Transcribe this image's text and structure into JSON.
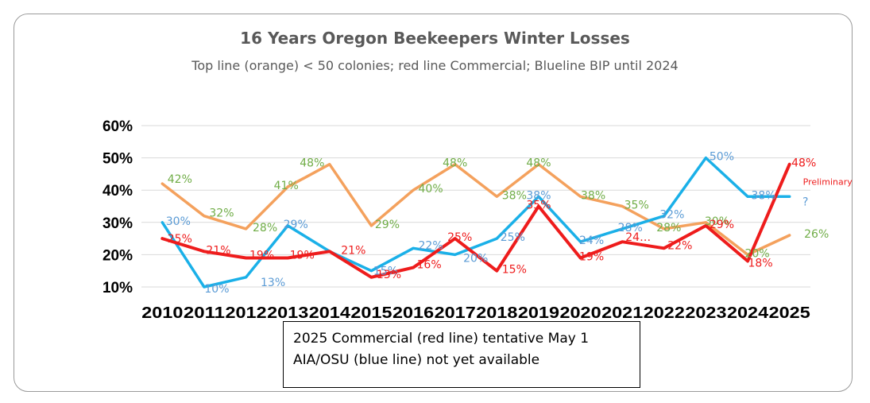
{
  "chart_data": {
    "type": "line",
    "title": "16 Years Oregon Beekeepers Winter Losses",
    "subtitle": "Top line (orange) < 50 colonies; red line Commercial; Blueline BIP until 2024",
    "categories": [
      "2010",
      "2011",
      "2012",
      "2013",
      "2014",
      "2015",
      "2016",
      "2017",
      "2018",
      "2019",
      "2020",
      "2021",
      "2022",
      "2023",
      "2024",
      "2025"
    ],
    "y_ticks": [
      "10%",
      "20%",
      "30%",
      "40%",
      "50%",
      "60%"
    ],
    "ylim": [
      10,
      60
    ],
    "grid": true,
    "legend": "none",
    "series": [
      {
        "key": "orange",
        "color": "#f4a15d",
        "label_color": "#70ad47",
        "values": [
          42,
          32,
          28,
          41,
          48,
          29,
          40,
          48,
          38,
          48,
          38,
          35,
          28,
          30,
          20,
          26
        ],
        "labels": [
          "42%",
          "32%",
          "28%",
          "41%",
          "48%",
          "29%",
          "40%",
          "48%",
          "38%",
          "48%",
          "38%",
          "35%",
          "28%",
          "30%",
          "20%",
          "26%"
        ],
        "label_show": [
          true,
          true,
          true,
          true,
          true,
          true,
          true,
          true,
          true,
          true,
          true,
          true,
          true,
          true,
          true,
          true
        ]
      },
      {
        "key": "blue",
        "color": "#1ab0e8",
        "label_color": "#5b9bd5",
        "values": [
          30,
          10,
          13,
          29,
          21,
          15,
          22,
          20,
          25,
          38,
          24,
          28,
          32,
          50,
          38,
          38
        ],
        "labels": [
          "30%",
          "10%",
          "13%",
          "29%",
          "21%",
          "15%",
          "22%",
          "20%",
          "25%",
          "38%",
          "24%",
          "28%",
          "32%",
          "50%",
          "38%",
          "?"
        ],
        "label_show": [
          true,
          true,
          true,
          true,
          false,
          true,
          true,
          true,
          true,
          true,
          true,
          true,
          true,
          true,
          true,
          true
        ]
      },
      {
        "key": "red",
        "color": "#ee1c1c",
        "label_color": "#ee1c1c",
        "values": [
          25,
          21,
          19,
          19,
          21,
          13,
          16,
          25,
          15,
          35,
          19,
          24,
          22,
          29,
          18,
          48
        ],
        "labels": [
          "25%",
          "21%",
          "19%",
          "19%",
          "21%",
          "13%",
          "16%",
          "25%",
          "15%",
          "35%",
          "19%",
          "24…",
          "22%",
          "29%",
          "18%",
          "48%"
        ],
        "label_show": [
          true,
          true,
          true,
          true,
          true,
          true,
          true,
          true,
          true,
          true,
          true,
          true,
          true,
          true,
          true,
          true
        ]
      }
    ],
    "annotations": [
      "Preliminary"
    ]
  },
  "note": {
    "line1": "2025 Commercial (red line) tentative May 1",
    "line2": "AIA/OSU (blue line) not yet available"
  }
}
